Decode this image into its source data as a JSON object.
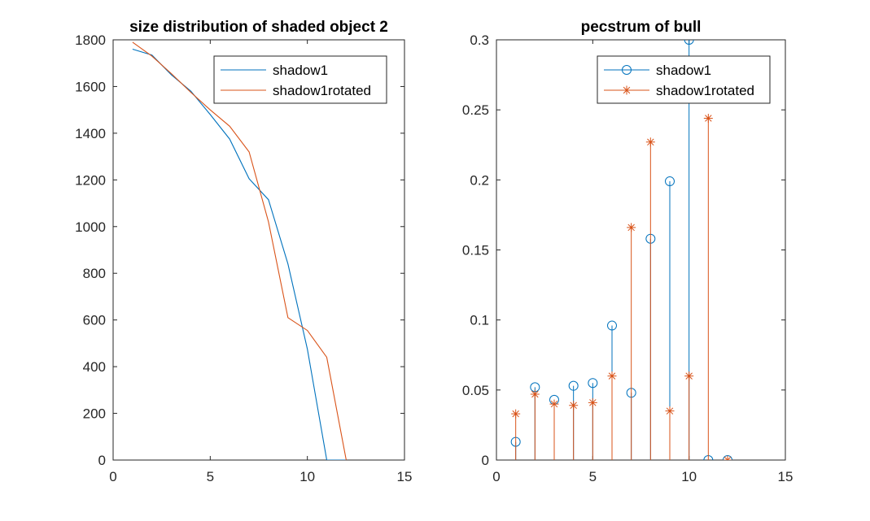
{
  "colors": {
    "series1": "#0072BD",
    "series2": "#D95319",
    "axis": "#262626",
    "legend_border": "#262626"
  },
  "chart_data": [
    {
      "type": "line",
      "title": "size distribution of shaded object 2",
      "xlabel": "",
      "ylabel": "",
      "xlim": [
        0,
        15
      ],
      "ylim": [
        0,
        1800
      ],
      "xticks": [
        0,
        5,
        10,
        15
      ],
      "yticks": [
        0,
        200,
        400,
        600,
        800,
        1000,
        1200,
        1400,
        1600,
        1800
      ],
      "grid": false,
      "legend_position": "top-right",
      "series": [
        {
          "name": "shadow1",
          "color": "#0072BD",
          "marker": "none",
          "x": [
            1,
            2,
            3,
            4,
            5,
            6,
            7,
            8,
            9,
            10,
            11,
            12
          ],
          "y": [
            1760,
            1735,
            1650,
            1580,
            1480,
            1375,
            1205,
            1115,
            840,
            475,
            0,
            0
          ]
        },
        {
          "name": "shadow1rotated",
          "color": "#D95319",
          "marker": "none",
          "x": [
            1,
            2,
            3,
            4,
            5,
            6,
            7,
            8,
            9,
            10,
            11,
            12
          ],
          "y": [
            1790,
            1730,
            1655,
            1575,
            1500,
            1430,
            1320,
            1020,
            610,
            555,
            440,
            0
          ]
        }
      ]
    },
    {
      "type": "stem",
      "title": "pecstrum of bull",
      "xlabel": "",
      "ylabel": "",
      "xlim": [
        0,
        15
      ],
      "ylim": [
        0,
        0.3
      ],
      "xticks": [
        0,
        5,
        10,
        15
      ],
      "yticks": [
        0,
        0.05,
        0.1,
        0.15,
        0.2,
        0.25,
        0.3
      ],
      "grid": false,
      "legend_position": "top-right",
      "series": [
        {
          "name": "shadow1",
          "color": "#0072BD",
          "marker": "circle",
          "x": [
            1,
            2,
            3,
            4,
            5,
            6,
            7,
            8,
            9,
            10,
            11,
            12
          ],
          "y": [
            0.013,
            0.052,
            0.043,
            0.053,
            0.055,
            0.096,
            0.048,
            0.158,
            0.199,
            0.3,
            0.0,
            0.0
          ]
        },
        {
          "name": "shadow1rotated",
          "color": "#D95319",
          "marker": "asterisk",
          "x": [
            1,
            2,
            3,
            4,
            5,
            6,
            7,
            8,
            9,
            10,
            11,
            12
          ],
          "y": [
            0.033,
            0.047,
            0.04,
            0.039,
            0.041,
            0.06,
            0.166,
            0.227,
            0.035,
            0.06,
            0.244,
            0.0
          ]
        }
      ]
    }
  ]
}
